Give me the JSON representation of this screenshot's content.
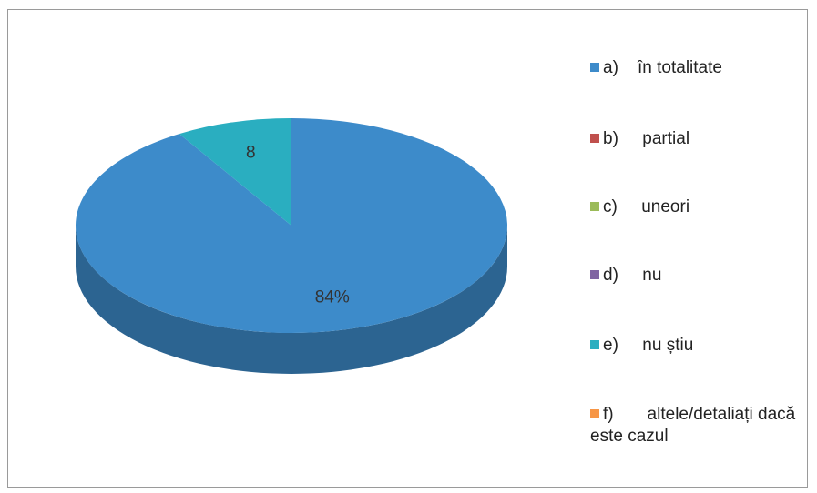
{
  "chart_data": {
    "type": "pie",
    "categories": [
      "a)    în totalitate",
      "b)     partial",
      "c)     uneori",
      "d)     nu",
      "e)     nu știu",
      "f)       altele/detaliați dacă este cazul"
    ],
    "values": [
      84,
      0,
      0,
      0,
      8,
      0
    ],
    "value_labels": [
      "84%",
      null,
      null,
      null,
      "8",
      null
    ],
    "colors": [
      "#3d8bca",
      "#c0504d",
      "#9bbb59",
      "#8064a2",
      "#2aaec0",
      "#f79646"
    ]
  }
}
